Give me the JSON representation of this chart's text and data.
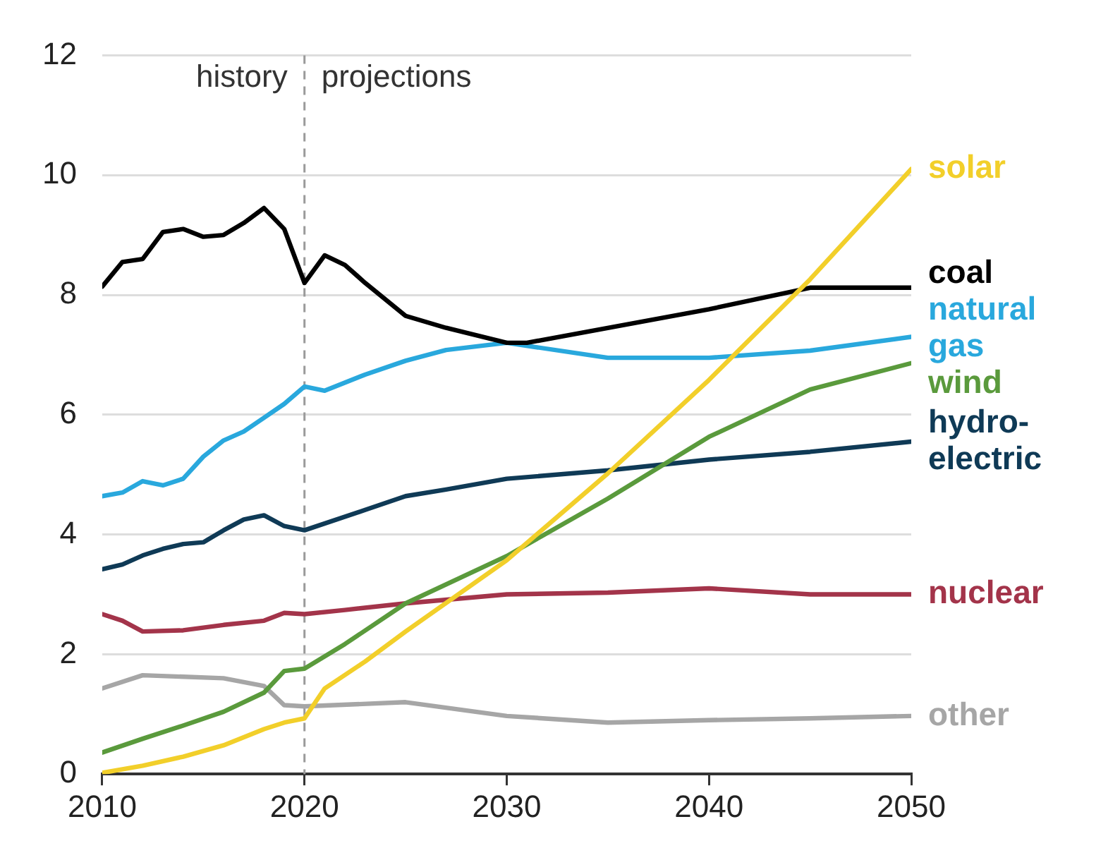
{
  "chart_data": {
    "type": "line",
    "xlim": [
      2010,
      2050
    ],
    "xticks": [
      2010,
      2020,
      2030,
      2040,
      2050
    ],
    "ylim": [
      0,
      12
    ],
    "yticks": [
      0,
      2,
      4,
      6,
      8,
      10,
      12
    ],
    "grid": "y",
    "legend": false,
    "marker": "none",
    "line_style": "solid",
    "ref_lines": [
      {
        "axis": "x",
        "value": 2020,
        "color": "#9a9a9a",
        "line_style": "dashed"
      }
    ],
    "annotations": [
      "history",
      "projections"
    ],
    "series": [
      {
        "name": "solar",
        "color": "#f2cf2a",
        "x": [
          2010,
          2012,
          2014,
          2016,
          2018,
          2019,
          2020,
          2021,
          2023,
          2025,
          2030,
          2035,
          2040,
          2045,
          2050
        ],
        "values": [
          0.02,
          0.14,
          0.29,
          0.48,
          0.75,
          0.86,
          0.93,
          1.43,
          1.88,
          2.38,
          3.57,
          5.02,
          6.58,
          8.26,
          10.1
        ]
      },
      {
        "name": "coal",
        "color": "#000000",
        "x": [
          2010,
          2011,
          2012,
          2013,
          2014,
          2015,
          2016,
          2017,
          2018,
          2019,
          2020,
          2021,
          2022,
          2023,
          2025,
          2027,
          2030,
          2031,
          2040,
          2045,
          2050
        ],
        "values": [
          8.14,
          8.55,
          8.6,
          9.05,
          9.1,
          8.97,
          9.0,
          9.2,
          9.45,
          9.1,
          8.2,
          8.66,
          8.5,
          8.2,
          7.65,
          7.45,
          7.2,
          7.2,
          7.76,
          8.12,
          8.12
        ]
      },
      {
        "name": "natural gas",
        "color": "#29a8dd",
        "x": [
          2010,
          2011,
          2012,
          2013,
          2014,
          2015,
          2016,
          2017,
          2018,
          2019,
          2020,
          2021,
          2023,
          2025,
          2027,
          2030,
          2035,
          2040,
          2045,
          2050
        ],
        "values": [
          4.64,
          4.7,
          4.89,
          4.82,
          4.93,
          5.3,
          5.57,
          5.72,
          5.95,
          6.18,
          6.47,
          6.4,
          6.67,
          6.9,
          7.08,
          7.2,
          6.95,
          6.95,
          7.07,
          7.3
        ]
      },
      {
        "name": "wind",
        "color": "#5a9a3c",
        "x": [
          2010,
          2012,
          2014,
          2016,
          2018,
          2019,
          2020,
          2022,
          2025,
          2030,
          2035,
          2040,
          2045,
          2050
        ],
        "values": [
          0.36,
          0.59,
          0.81,
          1.04,
          1.36,
          1.72,
          1.76,
          2.17,
          2.85,
          3.64,
          4.6,
          5.63,
          6.42,
          6.86
        ]
      },
      {
        "name": "hydro-electric",
        "color": "#0f3a56",
        "x": [
          2010,
          2011,
          2012,
          2013,
          2014,
          2015,
          2016,
          2017,
          2018,
          2019,
          2020,
          2023,
          2025,
          2027,
          2030,
          2035,
          2040,
          2045,
          2050
        ],
        "values": [
          3.42,
          3.5,
          3.65,
          3.76,
          3.84,
          3.87,
          4.07,
          4.25,
          4.32,
          4.14,
          4.07,
          4.41,
          4.64,
          4.75,
          4.93,
          5.07,
          5.25,
          5.38,
          5.55
        ]
      },
      {
        "name": "nuclear",
        "color": "#a3344a",
        "x": [
          2010,
          2011,
          2012,
          2014,
          2016,
          2018,
          2019,
          2020,
          2022,
          2025,
          2030,
          2035,
          2040,
          2045,
          2050
        ],
        "values": [
          2.67,
          2.56,
          2.38,
          2.4,
          2.49,
          2.56,
          2.69,
          2.67,
          2.74,
          2.85,
          3.0,
          3.03,
          3.1,
          3.0,
          3.0
        ]
      },
      {
        "name": "other",
        "color": "#a6a6a6",
        "x": [
          2010,
          2012,
          2016,
          2018,
          2019,
          2020,
          2025,
          2030,
          2035,
          2040,
          2045,
          2050
        ],
        "values": [
          1.43,
          1.65,
          1.6,
          1.47,
          1.15,
          1.13,
          1.2,
          0.97,
          0.86,
          0.9,
          0.93,
          0.97
        ]
      }
    ]
  }
}
